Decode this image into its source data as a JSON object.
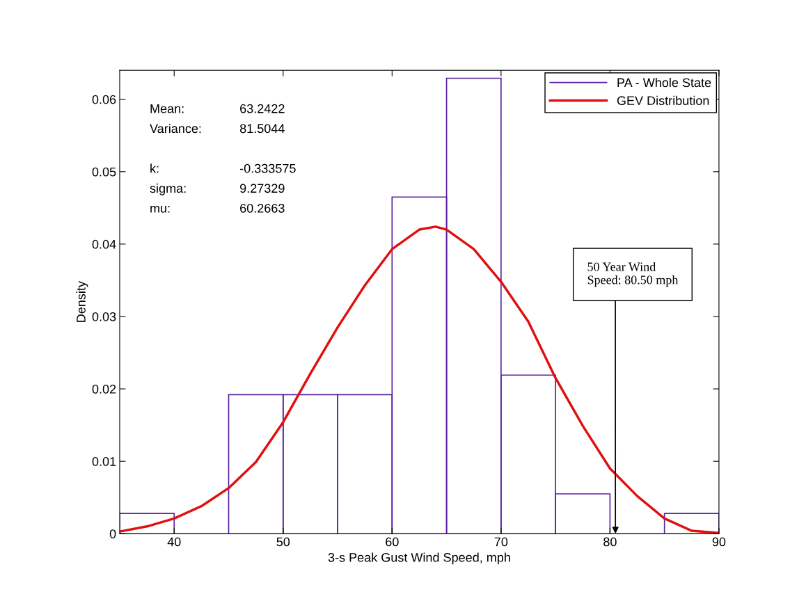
{
  "chart_data": {
    "type": "histogram",
    "xlabel": "3-s Peak Gust Wind Speed, mph",
    "ylabel": "Density",
    "bins": [
      35,
      40,
      45,
      50,
      55,
      60,
      65,
      70,
      75,
      80,
      85,
      90
    ],
    "series": [
      {
        "name": "PA - Whole State",
        "color": "#5a22a0",
        "values": [
          0.0028,
          0,
          0.0192,
          0.0192,
          0.0192,
          0.0465,
          0.0629,
          0.0219,
          0.0055,
          0,
          0.0028
        ]
      },
      {
        "name": "GEV Distribution",
        "type": "line",
        "color": "#e01010",
        "x": [
          35,
          37.5,
          40,
          42.5,
          45,
          47.5,
          50,
          52.5,
          55,
          57.5,
          60,
          62.5,
          64,
          65,
          67.5,
          70,
          72.5,
          75,
          77.5,
          80,
          82.5,
          85,
          87.5,
          90
        ],
        "values": [
          0.0003,
          0.001,
          0.0021,
          0.0038,
          0.0063,
          0.0099,
          0.0154,
          0.0221,
          0.0285,
          0.0343,
          0.0393,
          0.042,
          0.0424,
          0.042,
          0.0393,
          0.0348,
          0.0293,
          0.0215,
          0.0149,
          0.009,
          0.0052,
          0.0021,
          0.0004,
          0.0001
        ]
      }
    ],
    "xlim": [
      35,
      90
    ],
    "xticks": [
      40,
      50,
      60,
      70,
      80,
      90
    ],
    "ylim": [
      0,
      0.064
    ],
    "yticks": [
      0,
      0.01,
      0.02,
      0.03,
      0.04,
      0.05,
      0.06
    ],
    "grid": false,
    "legend": "top right",
    "annotations": [
      "Mean: 63.2422\nVariance: 81.5044",
      "k: -0.333575\nsigma: 9.27329\nmu: 60.2663",
      {
        "text": "50 Year Wind\nSpeed: 80.50 mph",
        "x": 80.5,
        "y": 0
      }
    ]
  }
}
